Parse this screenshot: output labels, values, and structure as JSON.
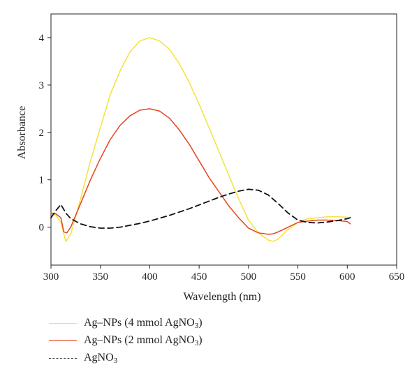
{
  "chart_data": {
    "type": "line",
    "title": "",
    "xlabel": "Wavelength (nm)",
    "ylabel": "Absorbance",
    "xlim": [
      300,
      650
    ],
    "ylim": [
      -0.8,
      4.5
    ],
    "xticks": [
      300,
      350,
      400,
      450,
      500,
      550,
      600,
      650
    ],
    "yticks": [
      0,
      1,
      2,
      3,
      4
    ],
    "grid": false,
    "legend_position": "bottom",
    "series": [
      {
        "name": "Ag–NPs (4 mmol AgNO3)",
        "color": "#f5e23a",
        "style": "solid",
        "x": [
          300,
          305,
          310,
          315,
          320,
          330,
          340,
          350,
          360,
          370,
          380,
          390,
          400,
          410,
          420,
          430,
          440,
          450,
          460,
          470,
          480,
          490,
          500,
          510,
          520,
          525,
          530,
          540,
          550,
          560,
          570,
          580,
          590,
          600,
          603
        ],
        "y": [
          0.3,
          0.25,
          0.1,
          -0.3,
          -0.15,
          0.6,
          1.4,
          2.1,
          2.8,
          3.3,
          3.7,
          3.93,
          4.0,
          3.93,
          3.75,
          3.45,
          3.05,
          2.6,
          2.1,
          1.6,
          1.1,
          0.6,
          0.15,
          -0.12,
          -0.27,
          -0.3,
          -0.25,
          -0.05,
          0.1,
          0.18,
          0.2,
          0.22,
          0.22,
          0.21,
          0.2
        ]
      },
      {
        "name": "Ag–NPs (2 mmol AgNO3)",
        "color": "#e8431e",
        "style": "solid",
        "x": [
          300,
          305,
          310,
          313,
          316,
          320,
          330,
          340,
          350,
          360,
          370,
          380,
          390,
          400,
          410,
          420,
          430,
          440,
          450,
          460,
          470,
          480,
          490,
          500,
          510,
          520,
          525,
          530,
          540,
          550,
          560,
          570,
          580,
          590,
          600,
          603
        ],
        "y": [
          0.3,
          0.28,
          0.2,
          -0.1,
          -0.12,
          0.0,
          0.5,
          1.0,
          1.45,
          1.85,
          2.15,
          2.35,
          2.47,
          2.5,
          2.45,
          2.3,
          2.05,
          1.75,
          1.4,
          1.05,
          0.75,
          0.45,
          0.2,
          -0.02,
          -0.12,
          -0.15,
          -0.14,
          -0.1,
          0.0,
          0.1,
          0.13,
          0.15,
          0.15,
          0.14,
          0.12,
          0.07
        ]
      },
      {
        "name": "AgNO3",
        "color": "#111111",
        "style": "dashed",
        "x": [
          300,
          305,
          310,
          315,
          320,
          330,
          340,
          350,
          360,
          370,
          380,
          390,
          400,
          410,
          420,
          430,
          440,
          450,
          460,
          470,
          480,
          490,
          500,
          510,
          520,
          530,
          540,
          550,
          560,
          570,
          580,
          590,
          600,
          603
        ],
        "y": [
          0.2,
          0.35,
          0.48,
          0.3,
          0.18,
          0.07,
          0.01,
          -0.02,
          -0.02,
          0.0,
          0.04,
          0.08,
          0.13,
          0.19,
          0.25,
          0.32,
          0.39,
          0.47,
          0.55,
          0.63,
          0.7,
          0.76,
          0.8,
          0.78,
          0.68,
          0.5,
          0.3,
          0.15,
          0.1,
          0.09,
          0.11,
          0.14,
          0.18,
          0.2
        ]
      }
    ]
  },
  "legend": {
    "items": [
      {
        "prefix": "Ag–NPs (4 mmol AgNO",
        "sub": "3",
        "suffix": ")"
      },
      {
        "prefix": "Ag–NPs (2 mmol AgNO",
        "sub": "3",
        "suffix": ")"
      },
      {
        "prefix": "AgNO",
        "sub": "3",
        "suffix": ""
      }
    ]
  }
}
